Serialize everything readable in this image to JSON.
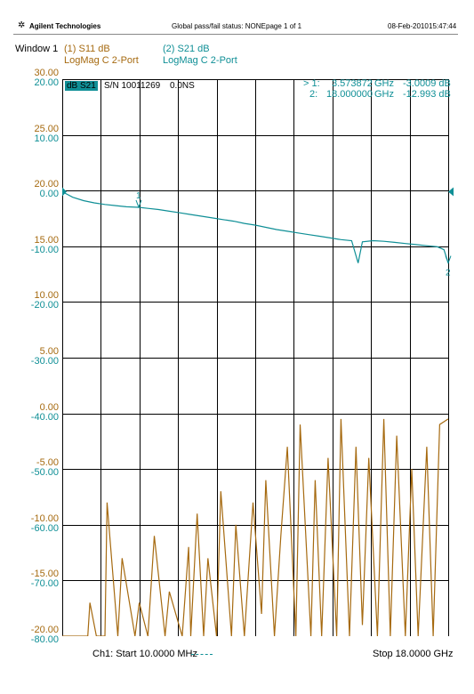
{
  "header": {
    "brand": "Agilent Technologies",
    "status": "Global pass/fail status: NONE",
    "page": "page 1 of 1",
    "date": "08-Feb-2010",
    "time": "15:47:44"
  },
  "window_label": "Window 1",
  "traces": [
    {
      "title": "(1) S11 dB",
      "format": "LogMag C  2-Port",
      "color": "#a66a10"
    },
    {
      "title": "(2) S21 dB",
      "format": "LogMag C  2-Port",
      "color": "#0f8f96"
    }
  ],
  "info": {
    "badge": "dB S21",
    "serial": "S/N 10011269",
    "delay": "0.0NS"
  },
  "markers": [
    {
      "label": "> 1:",
      "freq": "3.573872",
      "unit": "GHz",
      "value": "-3.0009 dB"
    },
    {
      "label": "2:",
      "freq": "18.000000",
      "unit": "GHz",
      "value": "-12.993 dB"
    }
  ],
  "footer": {
    "start": "Ch1: Start  10.0000 MHz",
    "stop": "Stop  18.0000 GHz"
  },
  "chart_data": {
    "type": "line",
    "x": {
      "start_ghz": 0.01,
      "stop_ghz": 18.0
    },
    "axes": {
      "s11": {
        "ticks": [
          "30.00",
          "25.00",
          "20.00",
          "15.00",
          "10.00",
          "5.00",
          "0.00",
          "-5.00",
          "-10.00",
          "-15.00",
          "-20.00"
        ],
        "ylim": [
          -20,
          30
        ]
      },
      "s21": {
        "ticks": [
          "20.00",
          "10.00",
          "0.00",
          "-10.00",
          "-20.00",
          "-30.00",
          "-40.00",
          "-50.00",
          "-60.00",
          "-70.00",
          "-80.00"
        ],
        "ylim": [
          -80,
          20
        ]
      }
    },
    "grid": true,
    "series": [
      {
        "name": "(2) S21 dB",
        "color": "#0f8f96",
        "x": [
          0.01,
          0.5,
          1,
          1.5,
          2,
          2.5,
          3,
          3.57,
          4,
          4.5,
          5,
          5.5,
          6,
          6.5,
          7,
          7.5,
          8,
          8.5,
          9,
          9.5,
          10,
          10.5,
          11,
          11.5,
          12,
          12.5,
          13,
          13.5,
          13.8,
          14,
          14.5,
          15,
          15.5,
          16,
          16.5,
          17,
          17.5,
          17.8,
          18
        ],
        "y": [
          -0.2,
          -1.2,
          -1.8,
          -2.2,
          -2.5,
          -2.7,
          -2.9,
          -3.0,
          -3.2,
          -3.4,
          -3.7,
          -4.0,
          -4.3,
          -4.6,
          -4.9,
          -5.2,
          -5.5,
          -5.9,
          -6.2,
          -6.6,
          -7.0,
          -7.3,
          -7.6,
          -7.9,
          -8.2,
          -8.5,
          -8.8,
          -9.0,
          -13.0,
          -9.2,
          -9.0,
          -9.1,
          -9.3,
          -9.5,
          -9.7,
          -9.9,
          -10.1,
          -10.6,
          -12.993
        ]
      },
      {
        "name": "(1) S11 dB",
        "color": "#a66a10",
        "x": [
          0.01,
          0.6,
          1.2,
          1.3,
          1.6,
          2.0,
          2.1,
          2.6,
          2.8,
          3.4,
          3.6,
          4.0,
          4.3,
          4.8,
          5.0,
          5.6,
          5.9,
          6.0,
          6.3,
          6.6,
          6.8,
          7.2,
          7.4,
          7.9,
          8.1,
          8.5,
          8.9,
          9.3,
          9.5,
          9.9,
          10.2,
          10.5,
          10.9,
          11.1,
          11.6,
          11.8,
          12.1,
          12.4,
          12.8,
          13.0,
          13.4,
          13.7,
          14.0,
          14.3,
          14.7,
          15.0,
          15.3,
          15.6,
          16.0,
          16.3,
          16.6,
          17.0,
          17.3,
          17.6,
          18.0
        ],
        "y": [
          -20,
          -20,
          -20,
          -17,
          -20,
          -20,
          -8,
          -20,
          -13,
          -20,
          -17,
          -20,
          -11,
          -20,
          -16,
          -20,
          -12,
          -20,
          -9,
          -20,
          -13,
          -20,
          -7,
          -20,
          -10,
          -20,
          -8,
          -18,
          -6,
          -20,
          -11,
          -3,
          -20,
          -1,
          -20,
          -6,
          -20,
          -4,
          -20,
          -0.5,
          -20,
          -3,
          -19,
          -4,
          -20,
          -0.5,
          -20,
          -2,
          -20,
          -5,
          -20,
          -3,
          -20,
          -1,
          -0.5
        ]
      }
    ]
  }
}
